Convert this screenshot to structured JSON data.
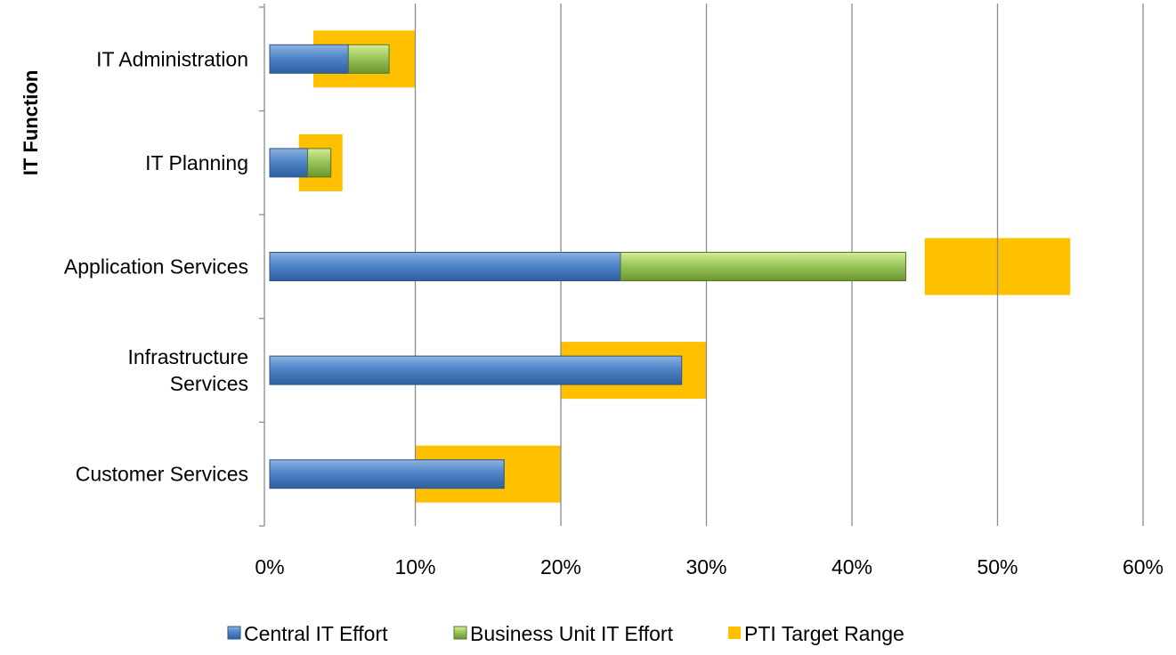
{
  "chart_data": {
    "type": "bar",
    "orientation": "horizontal",
    "stacked": true,
    "title": "",
    "xlabel": "",
    "ylabel": "IT Function",
    "xlim": [
      0,
      60
    ],
    "xticks": [
      "0%",
      "10%",
      "20%",
      "30%",
      "40%",
      "50%",
      "60%"
    ],
    "grid": "vertical",
    "legend_position": "bottom",
    "categories": [
      {
        "label_lines": [
          "IT Administration"
        ]
      },
      {
        "label_lines": [
          "IT Planning"
        ]
      },
      {
        "label_lines": [
          "Application Services"
        ]
      },
      {
        "label_lines": [
          "Infrastructure",
          "Services"
        ]
      },
      {
        "label_lines": [
          "Customer Services"
        ]
      }
    ],
    "series": [
      {
        "name": "Central IT Effort",
        "color": "#4a7ebb",
        "values": [
          5.4,
          2.6,
          24.1,
          28.3,
          16.1
        ]
      },
      {
        "name": "Business Unit IT Effort",
        "color": "#8cb84a",
        "values": [
          2.8,
          1.6,
          19.6,
          0,
          0
        ]
      }
    ],
    "target_range": {
      "name": "PTI Target Range",
      "color": "#ffc000",
      "ranges": [
        [
          3,
          10
        ],
        [
          2,
          5
        ],
        [
          45,
          55
        ],
        [
          20,
          30
        ],
        [
          10,
          20
        ]
      ]
    }
  }
}
